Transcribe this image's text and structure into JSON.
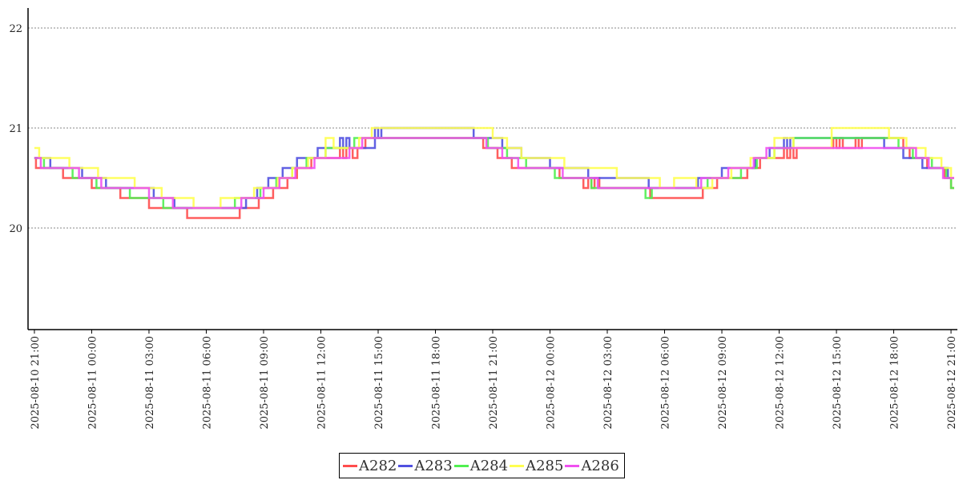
{
  "chart_data": {
    "type": "line",
    "step": true,
    "title": "",
    "xlabel": "",
    "ylabel": "",
    "ylim": [
      19,
      22.2
    ],
    "xlim": [
      "2025-08-10 20:40",
      "2025-08-12 21:20"
    ],
    "y_ticks": [
      20,
      21,
      22
    ],
    "x_ticks": [
      "2025-08-10 21:00",
      "2025-08-11 00:00",
      "2025-08-11 03:00",
      "2025-08-11 06:00",
      "2025-08-11 09:00",
      "2025-08-11 12:00",
      "2025-08-11 15:00",
      "2025-08-11 18:00",
      "2025-08-11 21:00",
      "2025-08-12 00:00",
      "2025-08-12 03:00",
      "2025-08-12 06:00",
      "2025-08-12 09:00",
      "2025-08-12 12:00",
      "2025-08-12 15:00",
      "2025-08-12 18:00",
      "2025-08-12 21:00"
    ],
    "grid": "horizontal-dotted",
    "legend_position": "bottom-center",
    "series": [
      {
        "name": "A282",
        "color": "#ff4d4d",
        "points": [
          [
            "2025-08-10 21:00",
            20.7
          ],
          [
            "2025-08-10 21:05",
            20.6
          ],
          [
            "2025-08-10 22:30",
            20.5
          ],
          [
            "2025-08-11 00:00",
            20.4
          ],
          [
            "2025-08-11 01:30",
            20.3
          ],
          [
            "2025-08-11 03:00",
            20.2
          ],
          [
            "2025-08-11 05:00",
            20.1
          ],
          [
            "2025-08-11 07:45",
            20.2
          ],
          [
            "2025-08-11 08:45",
            20.3
          ],
          [
            "2025-08-11 09:30",
            20.4
          ],
          [
            "2025-08-11 10:15",
            20.5
          ],
          [
            "2025-08-11 10:45",
            20.6
          ],
          [
            "2025-08-11 11:30",
            20.7
          ],
          [
            "2025-08-11 13:00",
            20.8
          ],
          [
            "2025-08-11 13:10",
            20.7
          ],
          [
            "2025-08-11 13:20",
            20.8
          ],
          [
            "2025-08-11 13:40",
            20.7
          ],
          [
            "2025-08-11 13:55",
            20.8
          ],
          [
            "2025-08-11 14:20",
            20.9
          ],
          [
            "2025-08-11 20:30",
            20.8
          ],
          [
            "2025-08-11 21:15",
            20.7
          ],
          [
            "2025-08-11 22:00",
            20.6
          ],
          [
            "2025-08-12 00:30",
            20.5
          ],
          [
            "2025-08-12 01:45",
            20.4
          ],
          [
            "2025-08-12 02:00",
            20.5
          ],
          [
            "2025-08-12 02:10",
            20.4
          ],
          [
            "2025-08-12 02:20",
            20.5
          ],
          [
            "2025-08-12 02:35",
            20.4
          ],
          [
            "2025-08-12 05:15",
            20.3
          ],
          [
            "2025-08-12 08:00",
            20.4
          ],
          [
            "2025-08-12 08:45",
            20.5
          ],
          [
            "2025-08-12 10:20",
            20.6
          ],
          [
            "2025-08-12 11:00",
            20.7
          ],
          [
            "2025-08-12 12:15",
            20.8
          ],
          [
            "2025-08-12 12:25",
            20.7
          ],
          [
            "2025-08-12 12:35",
            20.8
          ],
          [
            "2025-08-12 12:45",
            20.7
          ],
          [
            "2025-08-12 12:55",
            20.8
          ],
          [
            "2025-08-12 14:50",
            20.9
          ],
          [
            "2025-08-12 15:00",
            20.8
          ],
          [
            "2025-08-12 15:10",
            20.9
          ],
          [
            "2025-08-12 15:20",
            20.8
          ],
          [
            "2025-08-12 16:00",
            20.9
          ],
          [
            "2025-08-12 16:10",
            20.8
          ],
          [
            "2025-08-12 16:20",
            20.9
          ],
          [
            "2025-08-12 18:30",
            20.8
          ],
          [
            "2025-08-12 18:50",
            20.7
          ],
          [
            "2025-08-12 19:45",
            20.6
          ],
          [
            "2025-08-12 20:40",
            20.5
          ],
          [
            "2025-08-12 21:00",
            20.4
          ],
          [
            "2025-08-12 21:10",
            20.4
          ]
        ]
      },
      {
        "name": "A283",
        "color": "#5050e0",
        "points": [
          [
            "2025-08-10 21:00",
            20.7
          ],
          [
            "2025-08-10 21:50",
            20.6
          ],
          [
            "2025-08-10 23:30",
            20.5
          ],
          [
            "2025-08-11 00:45",
            20.4
          ],
          [
            "2025-08-11 03:15",
            20.3
          ],
          [
            "2025-08-11 04:20",
            20.2
          ],
          [
            "2025-08-11 07:00",
            20.2
          ],
          [
            "2025-08-11 08:05",
            20.3
          ],
          [
            "2025-08-11 08:40",
            20.4
          ],
          [
            "2025-08-11 09:15",
            20.5
          ],
          [
            "2025-08-11 10:00",
            20.6
          ],
          [
            "2025-08-11 10:45",
            20.7
          ],
          [
            "2025-08-11 11:50",
            20.8
          ],
          [
            "2025-08-11 13:00",
            20.9
          ],
          [
            "2025-08-11 13:10",
            20.8
          ],
          [
            "2025-08-11 13:20",
            20.9
          ],
          [
            "2025-08-11 13:30",
            20.8
          ],
          [
            "2025-08-11 14:50",
            21.0
          ],
          [
            "2025-08-11 15:00",
            20.9
          ],
          [
            "2025-08-11 15:10",
            21.0
          ],
          [
            "2025-08-11 20:00",
            20.9
          ],
          [
            "2025-08-11 21:30",
            20.8
          ],
          [
            "2025-08-11 22:30",
            20.7
          ],
          [
            "2025-08-12 00:00",
            20.6
          ],
          [
            "2025-08-12 02:00",
            20.5
          ],
          [
            "2025-08-12 05:10",
            20.4
          ],
          [
            "2025-08-12 07:45",
            20.5
          ],
          [
            "2025-08-12 09:00",
            20.6
          ],
          [
            "2025-08-12 10:45",
            20.7
          ],
          [
            "2025-08-12 11:30",
            20.8
          ],
          [
            "2025-08-12 12:15",
            20.9
          ],
          [
            "2025-08-12 12:25",
            20.8
          ],
          [
            "2025-08-12 12:35",
            20.9
          ],
          [
            "2025-08-12 17:30",
            20.8
          ],
          [
            "2025-08-12 18:30",
            20.7
          ],
          [
            "2025-08-12 19:30",
            20.6
          ],
          [
            "2025-08-12 20:50",
            20.5
          ],
          [
            "2025-08-12 21:10",
            20.5
          ]
        ]
      },
      {
        "name": "A284",
        "color": "#50f050",
        "points": [
          [
            "2025-08-10 21:00",
            20.7
          ],
          [
            "2025-08-10 21:30",
            20.6
          ],
          [
            "2025-08-10 23:00",
            20.5
          ],
          [
            "2025-08-11 00:15",
            20.4
          ],
          [
            "2025-08-11 02:00",
            20.3
          ],
          [
            "2025-08-11 03:45",
            20.2
          ],
          [
            "2025-08-11 07:30",
            20.3
          ],
          [
            "2025-08-11 08:50",
            20.4
          ],
          [
            "2025-08-11 09:40",
            20.5
          ],
          [
            "2025-08-11 10:30",
            20.6
          ],
          [
            "2025-08-11 11:15",
            20.7
          ],
          [
            "2025-08-11 12:15",
            20.8
          ],
          [
            "2025-08-11 13:45",
            20.9
          ],
          [
            "2025-08-11 20:45",
            20.8
          ],
          [
            "2025-08-11 21:45",
            20.7
          ],
          [
            "2025-08-11 22:45",
            20.6
          ],
          [
            "2025-08-12 00:15",
            20.5
          ],
          [
            "2025-08-12 02:10",
            20.4
          ],
          [
            "2025-08-12 05:00",
            20.3
          ],
          [
            "2025-08-12 05:20",
            20.4
          ],
          [
            "2025-08-12 08:15",
            20.5
          ],
          [
            "2025-08-12 10:00",
            20.6
          ],
          [
            "2025-08-12 10:50",
            20.7
          ],
          [
            "2025-08-12 11:45",
            20.8
          ],
          [
            "2025-08-12 12:45",
            20.9
          ],
          [
            "2025-08-12 18:15",
            20.8
          ],
          [
            "2025-08-12 19:00",
            20.7
          ],
          [
            "2025-08-12 20:00",
            20.6
          ],
          [
            "2025-08-12 20:45",
            20.5
          ],
          [
            "2025-08-12 21:00",
            20.4
          ],
          [
            "2025-08-12 21:10",
            20.4
          ]
        ]
      },
      {
        "name": "A285",
        "color": "#ffff50",
        "points": [
          [
            "2025-08-10 21:00",
            20.8
          ],
          [
            "2025-08-10 21:15",
            20.7
          ],
          [
            "2025-08-10 22:50",
            20.6
          ],
          [
            "2025-08-11 00:20",
            20.5
          ],
          [
            "2025-08-11 02:15",
            20.4
          ],
          [
            "2025-08-11 03:40",
            20.3
          ],
          [
            "2025-08-11 05:20",
            20.2
          ],
          [
            "2025-08-11 06:45",
            20.3
          ],
          [
            "2025-08-11 08:30",
            20.4
          ],
          [
            "2025-08-11 09:45",
            20.5
          ],
          [
            "2025-08-11 10:30",
            20.6
          ],
          [
            "2025-08-11 11:20",
            20.7
          ],
          [
            "2025-08-11 12:15",
            20.9
          ],
          [
            "2025-08-11 12:40",
            20.8
          ],
          [
            "2025-08-11 14:00",
            20.9
          ],
          [
            "2025-08-11 14:40",
            21.0
          ],
          [
            "2025-08-11 21:00",
            20.9
          ],
          [
            "2025-08-11 21:45",
            20.8
          ],
          [
            "2025-08-11 22:30",
            20.7
          ],
          [
            "2025-08-12 00:45",
            20.6
          ],
          [
            "2025-08-12 03:30",
            20.5
          ],
          [
            "2025-08-12 05:45",
            20.4
          ],
          [
            "2025-08-12 06:30",
            20.5
          ],
          [
            "2025-08-12 07:40",
            20.4
          ],
          [
            "2025-08-12 08:30",
            20.5
          ],
          [
            "2025-08-12 09:30",
            20.6
          ],
          [
            "2025-08-12 10:30",
            20.7
          ],
          [
            "2025-08-12 11:45",
            20.9
          ],
          [
            "2025-08-12 12:45",
            20.8
          ],
          [
            "2025-08-12 14:45",
            21.0
          ],
          [
            "2025-08-12 17:45",
            20.9
          ],
          [
            "2025-08-12 18:40",
            20.8
          ],
          [
            "2025-08-12 19:40",
            20.7
          ],
          [
            "2025-08-12 20:30",
            20.6
          ],
          [
            "2025-08-12 21:00",
            20.5
          ],
          [
            "2025-08-12 21:10",
            20.5
          ]
        ]
      },
      {
        "name": "A286",
        "color": "#f050f0",
        "points": [
          [
            "2025-08-10 21:00",
            20.7
          ],
          [
            "2025-08-10 21:20",
            20.6
          ],
          [
            "2025-08-10 23:20",
            20.5
          ],
          [
            "2025-08-11 00:30",
            20.4
          ],
          [
            "2025-08-11 03:00",
            20.3
          ],
          [
            "2025-08-11 04:15",
            20.2
          ],
          [
            "2025-08-11 07:50",
            20.3
          ],
          [
            "2025-08-11 09:00",
            20.4
          ],
          [
            "2025-08-11 09:50",
            20.5
          ],
          [
            "2025-08-11 10:40",
            20.6
          ],
          [
            "2025-08-11 11:40",
            20.7
          ],
          [
            "2025-08-11 13:30",
            20.8
          ],
          [
            "2025-08-11 14:10",
            20.9
          ],
          [
            "2025-08-11 20:40",
            20.8
          ],
          [
            "2025-08-11 21:30",
            20.7
          ],
          [
            "2025-08-11 22:20",
            20.6
          ],
          [
            "2025-08-12 00:40",
            20.5
          ],
          [
            "2025-08-12 02:30",
            20.4
          ],
          [
            "2025-08-12 05:30",
            20.4
          ],
          [
            "2025-08-12 07:55",
            20.5
          ],
          [
            "2025-08-12 09:20",
            20.6
          ],
          [
            "2025-08-12 10:40",
            20.7
          ],
          [
            "2025-08-12 11:20",
            20.8
          ],
          [
            "2025-08-12 13:00",
            20.8
          ],
          [
            "2025-08-12 18:20",
            20.8
          ],
          [
            "2025-08-12 19:10",
            20.7
          ],
          [
            "2025-08-12 19:50",
            20.6
          ],
          [
            "2025-08-12 20:35",
            20.5
          ],
          [
            "2025-08-12 21:10",
            20.5
          ]
        ]
      }
    ]
  }
}
